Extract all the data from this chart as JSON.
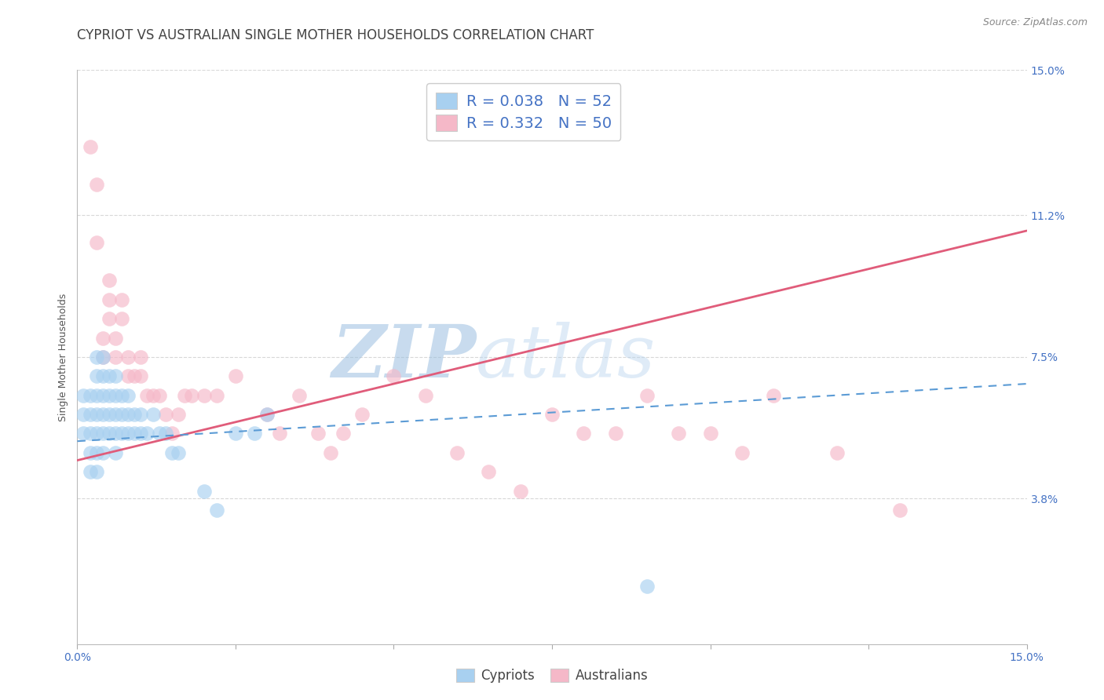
{
  "title": "CYPRIOT VS AUSTRALIAN SINGLE MOTHER HOUSEHOLDS CORRELATION CHART",
  "source": "Source: ZipAtlas.com",
  "ylabel": "Single Mother Households",
  "xlim": [
    0,
    0.15
  ],
  "ylim": [
    0,
    0.15
  ],
  "xticks": [
    0.0,
    0.025,
    0.05,
    0.075,
    0.1,
    0.125,
    0.15
  ],
  "xtick_labels": [
    "0.0%",
    "",
    "",
    "",
    "",
    "",
    "15.0%"
  ],
  "ytick_right_labels": [
    "15.0%",
    "11.2%",
    "7.5%",
    "3.8%"
  ],
  "ytick_right_values": [
    0.15,
    0.112,
    0.075,
    0.038
  ],
  "legend_R_cypriot": "0.038",
  "legend_N_cypriot": "52",
  "legend_R_australian": "0.332",
  "legend_N_australian": "50",
  "cypriot_color": "#a8d0f0",
  "australian_color": "#f5b8c8",
  "cypriot_line_color": "#5b9bd5",
  "australian_line_color": "#e05c7a",
  "watermark_zip_color": "#b8cfe8",
  "watermark_atlas_color": "#c8dff5",
  "background_color": "#ffffff",
  "grid_color": "#d8d8d8",
  "title_color": "#444444",
  "source_color": "#888888",
  "tick_color": "#4472c4",
  "label_color": "#555555",
  "legend_text_color": "#4472c4",
  "title_fontsize": 12,
  "axis_label_fontsize": 9,
  "tick_fontsize": 10,
  "legend_fontsize": 14,
  "cypriot_x": [
    0.001,
    0.001,
    0.001,
    0.002,
    0.002,
    0.002,
    0.002,
    0.002,
    0.003,
    0.003,
    0.003,
    0.003,
    0.003,
    0.003,
    0.003,
    0.004,
    0.004,
    0.004,
    0.004,
    0.004,
    0.004,
    0.005,
    0.005,
    0.005,
    0.005,
    0.006,
    0.006,
    0.006,
    0.006,
    0.006,
    0.007,
    0.007,
    0.007,
    0.008,
    0.008,
    0.008,
    0.009,
    0.009,
    0.01,
    0.01,
    0.011,
    0.012,
    0.013,
    0.014,
    0.015,
    0.016,
    0.02,
    0.022,
    0.025,
    0.028,
    0.03,
    0.09
  ],
  "cypriot_y": [
    0.055,
    0.06,
    0.065,
    0.045,
    0.05,
    0.055,
    0.06,
    0.065,
    0.045,
    0.05,
    0.055,
    0.06,
    0.065,
    0.07,
    0.075,
    0.05,
    0.055,
    0.06,
    0.065,
    0.07,
    0.075,
    0.055,
    0.06,
    0.065,
    0.07,
    0.05,
    0.055,
    0.06,
    0.065,
    0.07,
    0.055,
    0.06,
    0.065,
    0.055,
    0.06,
    0.065,
    0.055,
    0.06,
    0.055,
    0.06,
    0.055,
    0.06,
    0.055,
    0.055,
    0.05,
    0.05,
    0.04,
    0.035,
    0.055,
    0.055,
    0.06,
    0.015
  ],
  "australian_x": [
    0.002,
    0.003,
    0.003,
    0.004,
    0.004,
    0.005,
    0.005,
    0.005,
    0.006,
    0.006,
    0.007,
    0.007,
    0.008,
    0.008,
    0.009,
    0.01,
    0.01,
    0.011,
    0.012,
    0.013,
    0.014,
    0.015,
    0.016,
    0.017,
    0.018,
    0.02,
    0.022,
    0.025,
    0.03,
    0.032,
    0.035,
    0.038,
    0.04,
    0.042,
    0.045,
    0.05,
    0.055,
    0.06,
    0.065,
    0.07,
    0.075,
    0.08,
    0.085,
    0.09,
    0.095,
    0.1,
    0.105,
    0.11,
    0.12,
    0.13
  ],
  "australian_y": [
    0.13,
    0.12,
    0.105,
    0.08,
    0.075,
    0.085,
    0.09,
    0.095,
    0.075,
    0.08,
    0.085,
    0.09,
    0.07,
    0.075,
    0.07,
    0.07,
    0.075,
    0.065,
    0.065,
    0.065,
    0.06,
    0.055,
    0.06,
    0.065,
    0.065,
    0.065,
    0.065,
    0.07,
    0.06,
    0.055,
    0.065,
    0.055,
    0.05,
    0.055,
    0.06,
    0.07,
    0.065,
    0.05,
    0.045,
    0.04,
    0.06,
    0.055,
    0.055,
    0.065,
    0.055,
    0.055,
    0.05,
    0.065,
    0.05,
    0.035
  ],
  "aus_trend_start_y": 0.048,
  "aus_trend_end_y": 0.108,
  "cyp_trend_start_y": 0.053,
  "cyp_trend_end_y": 0.068
}
